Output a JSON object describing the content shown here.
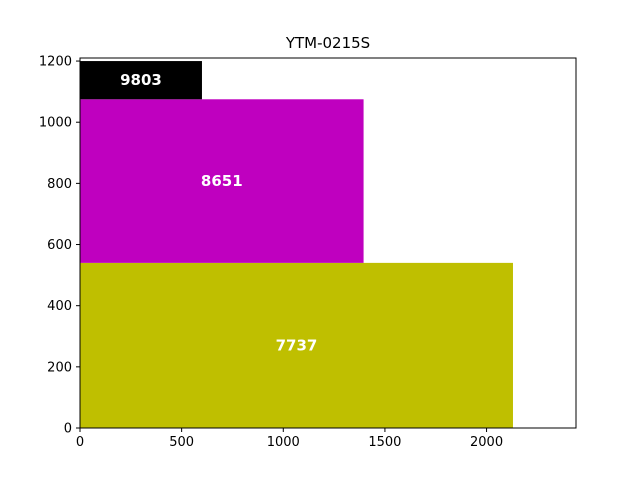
{
  "chart_data": {
    "type": "bar",
    "orientation": "stacked-rectangles",
    "title": "YTM-0215S",
    "xlabel": "",
    "ylabel": "",
    "xlim": [
      0,
      2440
    ],
    "ylim": [
      0,
      1210
    ],
    "xticks": [
      0,
      500,
      1000,
      1500,
      2000
    ],
    "yticks": [
      0,
      200,
      400,
      600,
      800,
      1000,
      1200
    ],
    "grid": false,
    "bars": [
      {
        "label": "7737",
        "x0": 0,
        "x1": 2130,
        "y0": 0,
        "y1": 540,
        "color": "#bfbf00"
      },
      {
        "label": "8651",
        "x0": 0,
        "x1": 1395,
        "y0": 540,
        "y1": 1075,
        "color": "#bf00bf"
      },
      {
        "label": "9803",
        "x0": 0,
        "x1": 600,
        "y0": 1075,
        "y1": 1200,
        "color": "#000000"
      }
    ]
  }
}
